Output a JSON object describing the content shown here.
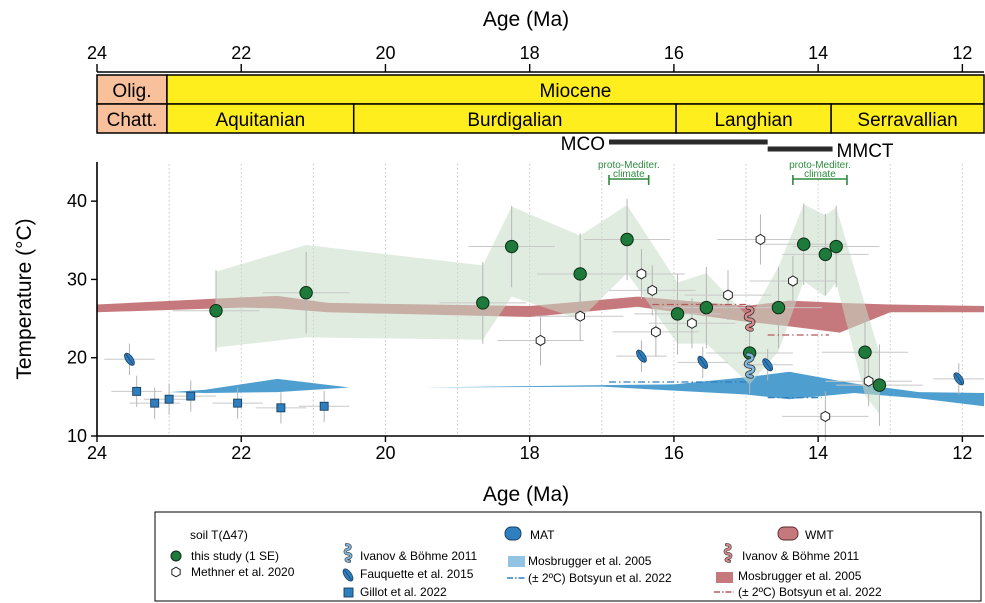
{
  "chart_data": {
    "type": "scatter",
    "xlabel": "Age (Ma)",
    "ylabel": "Temperature (°C)",
    "xlim": [
      24,
      11.7
    ],
    "ylim": [
      10,
      45
    ],
    "x_ticks": [
      "24",
      "22",
      "20",
      "18",
      "16",
      "14",
      "12"
    ],
    "y_ticks": [
      "10",
      "20",
      "30",
      "40"
    ],
    "x_tick_values": [
      24,
      22,
      20,
      18,
      16,
      14,
      12
    ],
    "y_tick_values": [
      10,
      20,
      30,
      40
    ],
    "top_axis_label": "Age (Ma)",
    "grid": "dotted vertical",
    "timescale": {
      "epochs": [
        {
          "label": "Olig.",
          "start": 24,
          "end": 23.03,
          "color": "#f9c19b"
        },
        {
          "label": "Miocene",
          "start": 23.03,
          "end": 11.7,
          "color": "#ffee1e"
        }
      ],
      "stages": [
        {
          "label": "Chatt.",
          "start": 24,
          "end": 23.03,
          "color": "#f9c19b"
        },
        {
          "label": "Aquitanian",
          "start": 23.03,
          "end": 20.44,
          "color": "#ffee1e"
        },
        {
          "label": "Burdigalian",
          "start": 20.44,
          "end": 15.97,
          "color": "#ffee1e"
        },
        {
          "label": "Langhian",
          "start": 15.97,
          "end": 13.82,
          "color": "#ffee1e"
        },
        {
          "label": "Serravallian",
          "start": 13.82,
          "end": 11.7,
          "color": "#ffee1e"
        }
      ]
    },
    "events": [
      {
        "label": "MCO",
        "start": 16.9,
        "end": 14.7
      },
      {
        "label": "MMCT",
        "start": 14.7,
        "end": 13.8
      }
    ],
    "proto_climate_label": "proto-Mediter. climate",
    "proto_climate_intervals": [
      [
        16.9,
        16.35
      ],
      [
        14.35,
        13.6
      ]
    ],
    "series": [
      {
        "name": "this study (1 SE)",
        "marker": "circle",
        "color": "#1e7a3b",
        "points": [
          [
            22.35,
            26
          ],
          [
            21.1,
            28.3
          ],
          [
            18.65,
            27
          ],
          [
            18.25,
            34.2
          ],
          [
            17.3,
            30.7
          ],
          [
            16.65,
            35.1
          ],
          [
            15.95,
            25.6
          ],
          [
            15.55,
            26.4
          ],
          [
            14.95,
            20.6
          ],
          [
            14.55,
            26.4
          ],
          [
            14.2,
            34.5
          ],
          [
            13.9,
            33.2
          ],
          [
            13.75,
            34.2
          ],
          [
            13.35,
            20.7
          ],
          [
            13.15,
            16.5
          ]
        ]
      },
      {
        "name": "Methner et al. 2020",
        "marker": "hexagon",
        "color": "#ffffff",
        "points": [
          [
            17.85,
            22.2
          ],
          [
            17.3,
            25.3
          ],
          [
            16.45,
            30.7
          ],
          [
            16.3,
            28.6
          ],
          [
            16.25,
            23.3
          ],
          [
            15.75,
            24.4
          ],
          [
            15.25,
            28
          ],
          [
            14.8,
            35.1
          ],
          [
            14.35,
            29.8
          ],
          [
            13.3,
            17
          ],
          [
            13.9,
            12.5
          ]
        ]
      },
      {
        "name": "Fauquette et al. 2015",
        "marker": "leaf",
        "color": "#2f7fbf",
        "points": [
          [
            23.55,
            19.8
          ],
          [
            16.45,
            20.2
          ],
          [
            15.6,
            19.4
          ],
          [
            14.7,
            19.1
          ],
          [
            12.05,
            17.3
          ]
        ]
      },
      {
        "name": "Gillot et al. 2022",
        "marker": "square",
        "color": "#2f7fbf",
        "points": [
          [
            23.45,
            15.7
          ],
          [
            23.2,
            14.2
          ],
          [
            23.0,
            14.7
          ],
          [
            22.7,
            15.1
          ],
          [
            22.05,
            14.2
          ],
          [
            21.45,
            13.6
          ],
          [
            20.85,
            13.8
          ]
        ]
      },
      {
        "name": "Ivanov & Böhme 2011 (MAT)",
        "marker": "snake-blue",
        "color": "#2f7fbf",
        "points": [
          [
            14.95,
            19
          ]
        ]
      },
      {
        "name": "Ivanov & Böhme 2011 (WMT)",
        "marker": "snake-red",
        "color": "#b5585c",
        "points": [
          [
            14.95,
            25
          ]
        ]
      }
    ],
    "bands": [
      {
        "name": "Mosbrugger et al. 2005 (MAT)",
        "color": "#4e9fcf",
        "points": [
          [
            24,
            15.5,
            15.5
          ],
          [
            23.0,
            15.6,
            15.6
          ],
          [
            22.5,
            15.5,
            15.9
          ],
          [
            21.5,
            15.6,
            17.3
          ],
          [
            20.5,
            16.2,
            16.2
          ],
          [
            19.5,
            16.2,
            16.2
          ],
          [
            17.0,
            16.3,
            16.5
          ],
          [
            16.0,
            15.8,
            16.6
          ],
          [
            15.0,
            15.3,
            17.5
          ],
          [
            14.4,
            14.7,
            18.2
          ],
          [
            13.5,
            15.5,
            16.7
          ],
          [
            12.6,
            14.8,
            15.6
          ],
          [
            11.7,
            13.8,
            15.5
          ]
        ]
      },
      {
        "name": "Mosbrugger et al. 2005 (WMT)",
        "color": "#c6797c",
        "points": [
          [
            24,
            25.8,
            26.8
          ],
          [
            22.0,
            26.4,
            27.7
          ],
          [
            21.5,
            26.3,
            27.9
          ],
          [
            20.8,
            25.8,
            27
          ],
          [
            18.0,
            25.2,
            26.6
          ],
          [
            16.5,
            26.5,
            27.8
          ],
          [
            15.0,
            24.6,
            26.6
          ],
          [
            14.4,
            24.0,
            27.3
          ],
          [
            13.7,
            23.2,
            27.0
          ],
          [
            13.0,
            25.8,
            26.8
          ],
          [
            11.7,
            25.8,
            26.6
          ]
        ]
      },
      {
        "name": "this study envelope",
        "color": "#c8ddc8",
        "points": [
          [
            22.35,
            21.3,
            31
          ],
          [
            21.1,
            22.6,
            34.4
          ],
          [
            18.65,
            22.3,
            31.8
          ],
          [
            18.25,
            27.8,
            39.3
          ],
          [
            17.3,
            24.9,
            35.6
          ],
          [
            16.65,
            30.8,
            39.5
          ],
          [
            15.95,
            21.8,
            29.6
          ],
          [
            15.55,
            21.8,
            30.8
          ],
          [
            14.95,
            16.6,
            25.0
          ],
          [
            14.55,
            20.8,
            31.6
          ],
          [
            14.2,
            29.8,
            39.6
          ],
          [
            13.9,
            27.8,
            38.2
          ],
          [
            13.75,
            29.6,
            39.2
          ],
          [
            13.35,
            15.2,
            26.8
          ],
          [
            13.15,
            12.8,
            20.6
          ]
        ]
      }
    ],
    "botsyun_2022": [
      {
        "series": "MAT",
        "start": 16.9,
        "end": 14.95,
        "value": 16.9
      },
      {
        "series": "MAT",
        "start": 14.7,
        "end": 13.95,
        "value": 14.9
      },
      {
        "series": "WMT",
        "start": 16.3,
        "end": 14.95,
        "value": 26.8
      },
      {
        "series": "WMT",
        "start": 14.7,
        "end": 13.85,
        "value": 22.9
      }
    ],
    "legend": {
      "soil_title": "soil T(Δ47)",
      "mat_title": "MAT",
      "wmt_title": "WMT",
      "items": {
        "this_study": "this study (1 SE)",
        "methner": "Methner et al. 2020",
        "ivanov_mat": "Ivanov & Böhme 2011",
        "fauquette": "Fauquette et al. 2015",
        "gillot": "Gillot et al. 2022",
        "mosbrugger_mat": "Mosbrugger et al. 2005",
        "botsyun_mat": "(± 2ºC) Botsyun et al. 2022",
        "ivanov_wmt": "Ivanov & Böhme 2011",
        "mosbrugger_wmt": "Mosbrugger et al. 2005",
        "botsyun_wmt": "(± 2ºC) Botsyun et al. 2022"
      }
    }
  }
}
